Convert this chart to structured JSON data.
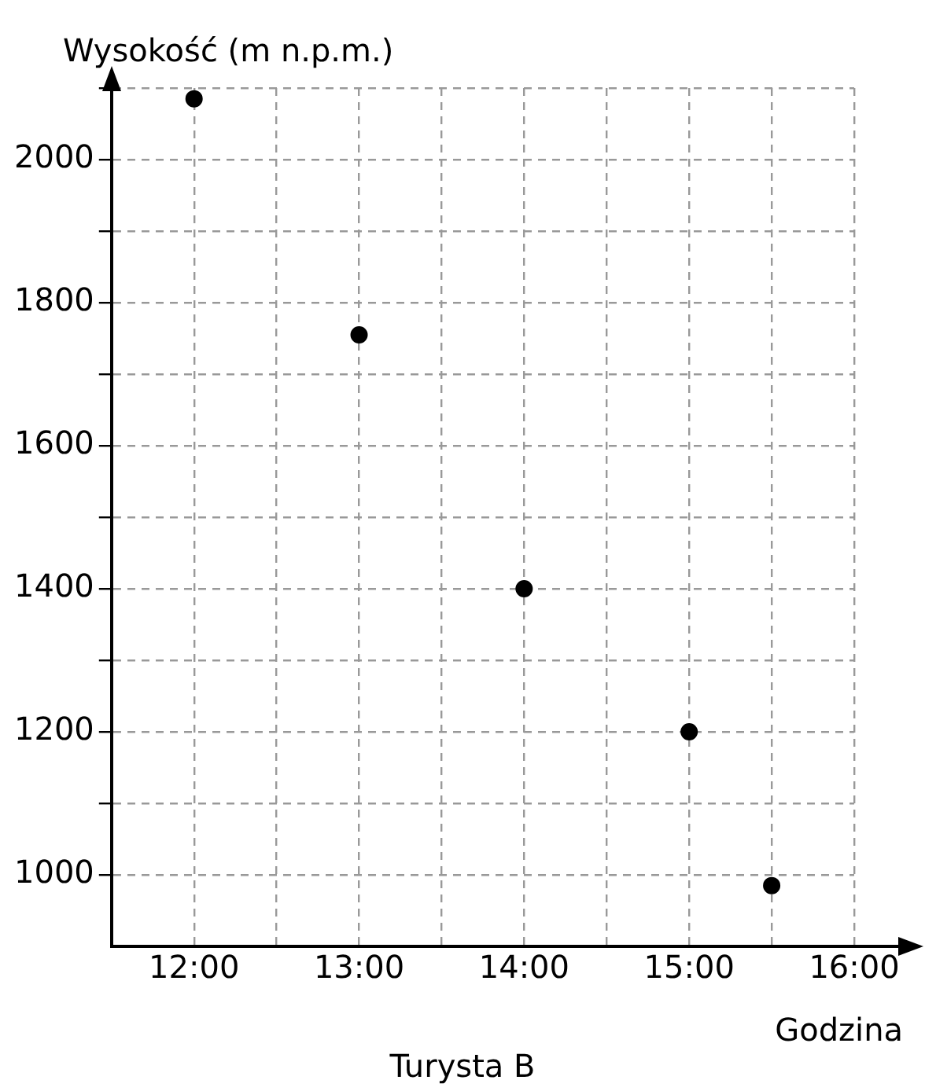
{
  "chart_data": {
    "type": "scatter",
    "title": "Turysta B",
    "xlabel": "Godzina",
    "ylabel": "Wysokość (m n.p.m.)",
    "x": [
      12,
      13,
      14,
      15,
      15.5
    ],
    "series": [
      {
        "color": "#000000",
        "values": [
          2085,
          1755,
          1400,
          1200,
          985
        ]
      }
    ],
    "xlim": [
      11.5,
      16
    ],
    "ylim": [
      900,
      2100
    ],
    "xticks": [
      {
        "value": 12,
        "label": "12:00"
      },
      {
        "value": 12.5,
        "label": null
      },
      {
        "value": 13,
        "label": "13:00"
      },
      {
        "value": 13.5,
        "label": null
      },
      {
        "value": 14,
        "label": "14:00"
      },
      {
        "value": 14.5,
        "label": null
      },
      {
        "value": 15,
        "label": "15:00"
      },
      {
        "value": 15.5,
        "label": null
      },
      {
        "value": 16,
        "label": "16:00"
      }
    ],
    "yticks": [
      1000,
      {
        "value": 1100,
        "label": null
      },
      1200,
      {
        "value": 1300,
        "label": null
      },
      1400,
      {
        "value": 1500,
        "label": null
      },
      1600,
      {
        "value": 1700,
        "label": null
      },
      1800,
      {
        "value": 1900,
        "label": null
      },
      2000,
      {
        "value": 2100,
        "label": null
      }
    ],
    "grid": true,
    "marker": "circle",
    "legend": false
  }
}
